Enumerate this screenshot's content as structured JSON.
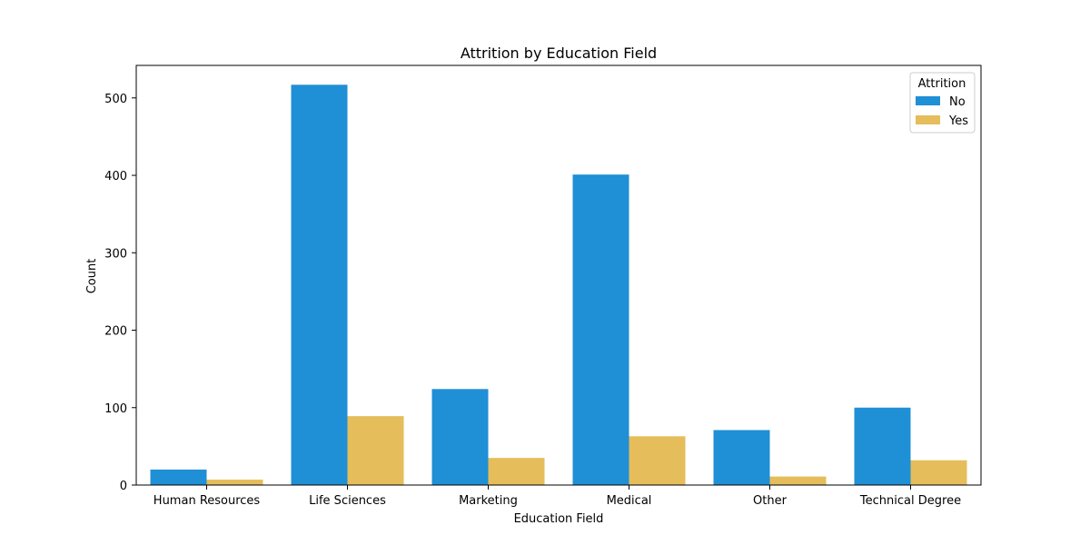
{
  "chart_data": {
    "type": "bar",
    "title": "Attrition by Education Field",
    "xlabel": "Education Field",
    "ylabel": "Count",
    "categories": [
      "Human Resources",
      "Life Sciences",
      "Marketing",
      "Medical",
      "Other",
      "Technical Degree"
    ],
    "series": [
      {
        "name": "No",
        "color": "#1f8fd6",
        "values": [
          20,
          517,
          124,
          401,
          71,
          100
        ]
      },
      {
        "name": "Yes",
        "color": "#e5bd5a",
        "values": [
          7,
          89,
          35,
          63,
          11,
          32
        ]
      }
    ],
    "ylim": [
      0,
      542
    ],
    "yticks": [
      0,
      100,
      200,
      300,
      400,
      500
    ],
    "legend": {
      "title": "Attrition",
      "placement": "top-right"
    },
    "grid": false
  }
}
